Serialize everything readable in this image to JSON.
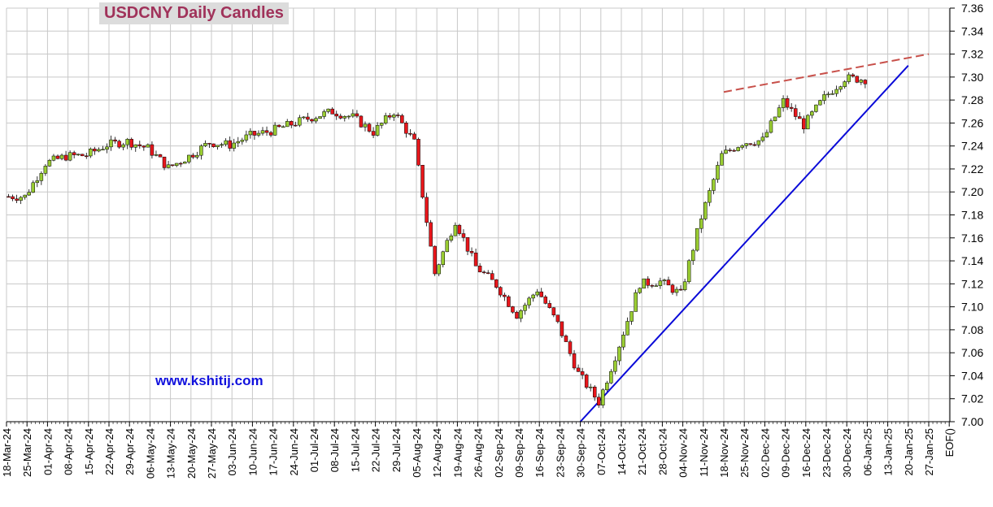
{
  "chart_data": {
    "type": "candlestick",
    "title": "USDCNY Daily Candles",
    "watermark": "www.kshitij.com",
    "ylim": [
      7.0,
      7.36
    ],
    "y_ticks": [
      "7.00",
      "7.02",
      "7.04",
      "7.06",
      "7.08",
      "7.10",
      "7.12",
      "7.14",
      "7.16",
      "7.18",
      "7.20",
      "7.22",
      "7.24",
      "7.26",
      "7.28",
      "7.30",
      "7.32",
      "7.34",
      "7.36"
    ],
    "x_tick_labels": [
      "18-Mar-24",
      "25-Mar-24",
      "01-Apr-24",
      "08-Apr-24",
      "15-Apr-24",
      "22-Apr-24",
      "29-Apr-24",
      "06-May-24",
      "13-May-24",
      "20-May-24",
      "27-May-24",
      "03-Jun-24",
      "10-Jun-24",
      "17-Jun-24",
      "24-Jun-24",
      "01-Jul-24",
      "08-Jul-24",
      "15-Jul-24",
      "22-Jul-24",
      "29-Jul-24",
      "05-Aug-24",
      "12-Aug-24",
      "19-Aug-24",
      "26-Aug-24",
      "02-Sep-24",
      "09-Sep-24",
      "16-Sep-24",
      "23-Sep-24",
      "30-Sep-24",
      "07-Oct-24",
      "14-Oct-24",
      "21-Oct-24",
      "28-Oct-24",
      "04-Nov-24",
      "11-Nov-24",
      "18-Nov-24",
      "25-Nov-24",
      "02-Dec-24",
      "09-Dec-24",
      "16-Dec-24",
      "23-Dec-24",
      "30-Dec-24",
      "06-Jan-25",
      "13-Jan-25",
      "20-Jan-25",
      "27-Jan-25",
      "EOF()"
    ],
    "weekly_closes": [
      7.196,
      7.225,
      7.231,
      7.232,
      7.241,
      7.244,
      7.238,
      7.221,
      7.231,
      7.243,
      7.241,
      7.249,
      7.253,
      7.259,
      7.265,
      7.27,
      7.265,
      7.252,
      7.27,
      7.243,
      7.129,
      7.175,
      7.135,
      7.119,
      7.093,
      7.115,
      7.085,
      7.042,
      7.017,
      7.067,
      7.12,
      7.122,
      7.111,
      7.178,
      7.232,
      7.243,
      7.245,
      7.279,
      7.258,
      7.282,
      7.299,
      7.298
    ],
    "annotations": [
      {
        "type": "support-trendline",
        "color": "#0a0ad8",
        "from": {
          "x": "30-Sep-24",
          "y": 7.0
        },
        "to": {
          "x": "20-Jan-25",
          "y": 7.31
        }
      },
      {
        "type": "resistance-trendline",
        "color": "#c8504a",
        "style": "dashed",
        "from": {
          "x": "18-Nov-24",
          "y": 7.287
        },
        "to": {
          "x": "27-Jan-25",
          "y": 7.32
        }
      }
    ],
    "colors": {
      "up": "#9acd32",
      "down": "#e8161b",
      "grid": "#c8c8c8",
      "title_text": "#a0325a",
      "title_bg": "#dcdcdc"
    }
  }
}
